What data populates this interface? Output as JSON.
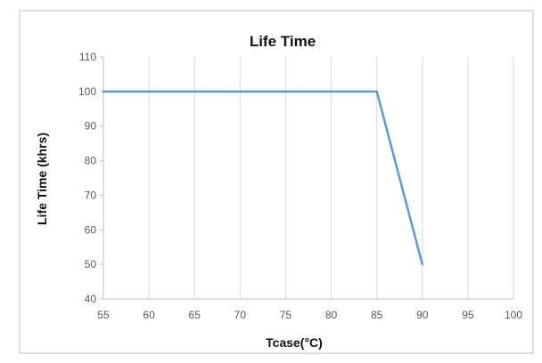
{
  "colors": {
    "series_line": "#5b9bd5",
    "gridline": "#d9d9d9",
    "chart_border": "#bfbfbf",
    "tick_text": "#595959",
    "title_text": "#111111"
  },
  "chart_data": {
    "type": "line",
    "title": "Life Time",
    "xlabel": "Tcase(°C)",
    "ylabel": "Life Time (khrs)",
    "xlim": [
      55,
      100
    ],
    "ylim": [
      40,
      110
    ],
    "x_ticks": [
      55,
      60,
      65,
      70,
      75,
      80,
      85,
      90,
      95,
      100
    ],
    "y_ticks": [
      40,
      50,
      60,
      70,
      80,
      90,
      100,
      110
    ],
    "grid": "vertical",
    "legend": "none",
    "series": [
      {
        "x": [
          55,
          85,
          90
        ],
        "y": [
          100,
          100,
          50
        ]
      }
    ]
  }
}
